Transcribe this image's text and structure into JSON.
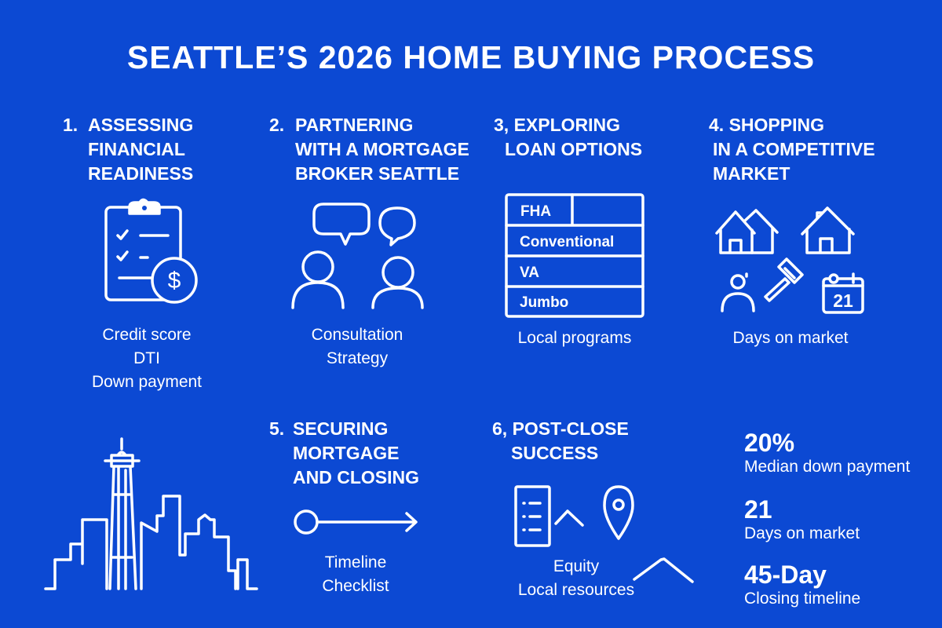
{
  "title": "SEATTLE’S 2026 HOME BUYING PROCESS",
  "background_color": "#0c49d3",
  "steps": [
    {
      "number": "1.",
      "lines": [
        "ASSESSING",
        "FINANCIAL",
        "READINESS"
      ],
      "icon": "clipboard-dollar-icon",
      "details": [
        "Credit score",
        "DTI",
        "Down payment"
      ]
    },
    {
      "number": "2.",
      "lines": [
        "PARTNERING",
        "WITH A MORTGAGE",
        "BROKER SEATTLE"
      ],
      "icon": "people-chat-icon",
      "details": [
        "Consultation",
        "Strategy"
      ]
    },
    {
      "number": "3,",
      "lines": [
        "EXPLORING",
        "LOAN OPTIONS"
      ],
      "icon": "loan-table",
      "loan_types": [
        "FHA",
        "Conventional",
        "VA",
        "Jumbo"
      ],
      "details": [
        "Local programs"
      ]
    },
    {
      "number": "4.",
      "lines": [
        "SHOPPING",
        "IN A COMPETITIVE",
        "MARKET"
      ],
      "icon": "houses-gavel-calendar-icon",
      "calendar_day": "21",
      "details": [
        "Days on market"
      ]
    },
    {
      "number": "5.",
      "lines": [
        "SECURING",
        "MORTGAGE",
        "AND CLOSING"
      ],
      "icon": "timeline-arrow-icon",
      "details": [
        "Timeline",
        "Checklist"
      ]
    },
    {
      "number": "6,",
      "lines": [
        "POST-CLOSE",
        "SUCCESS"
      ],
      "icon": "document-location-icon",
      "details": [
        "Equity",
        "Local resources"
      ]
    }
  ],
  "stats": [
    {
      "value": "20%",
      "label": "Median down payment"
    },
    {
      "value": "21",
      "label": "Days on market"
    },
    {
      "value": "45-Day",
      "label": "Closing timeline"
    }
  ]
}
